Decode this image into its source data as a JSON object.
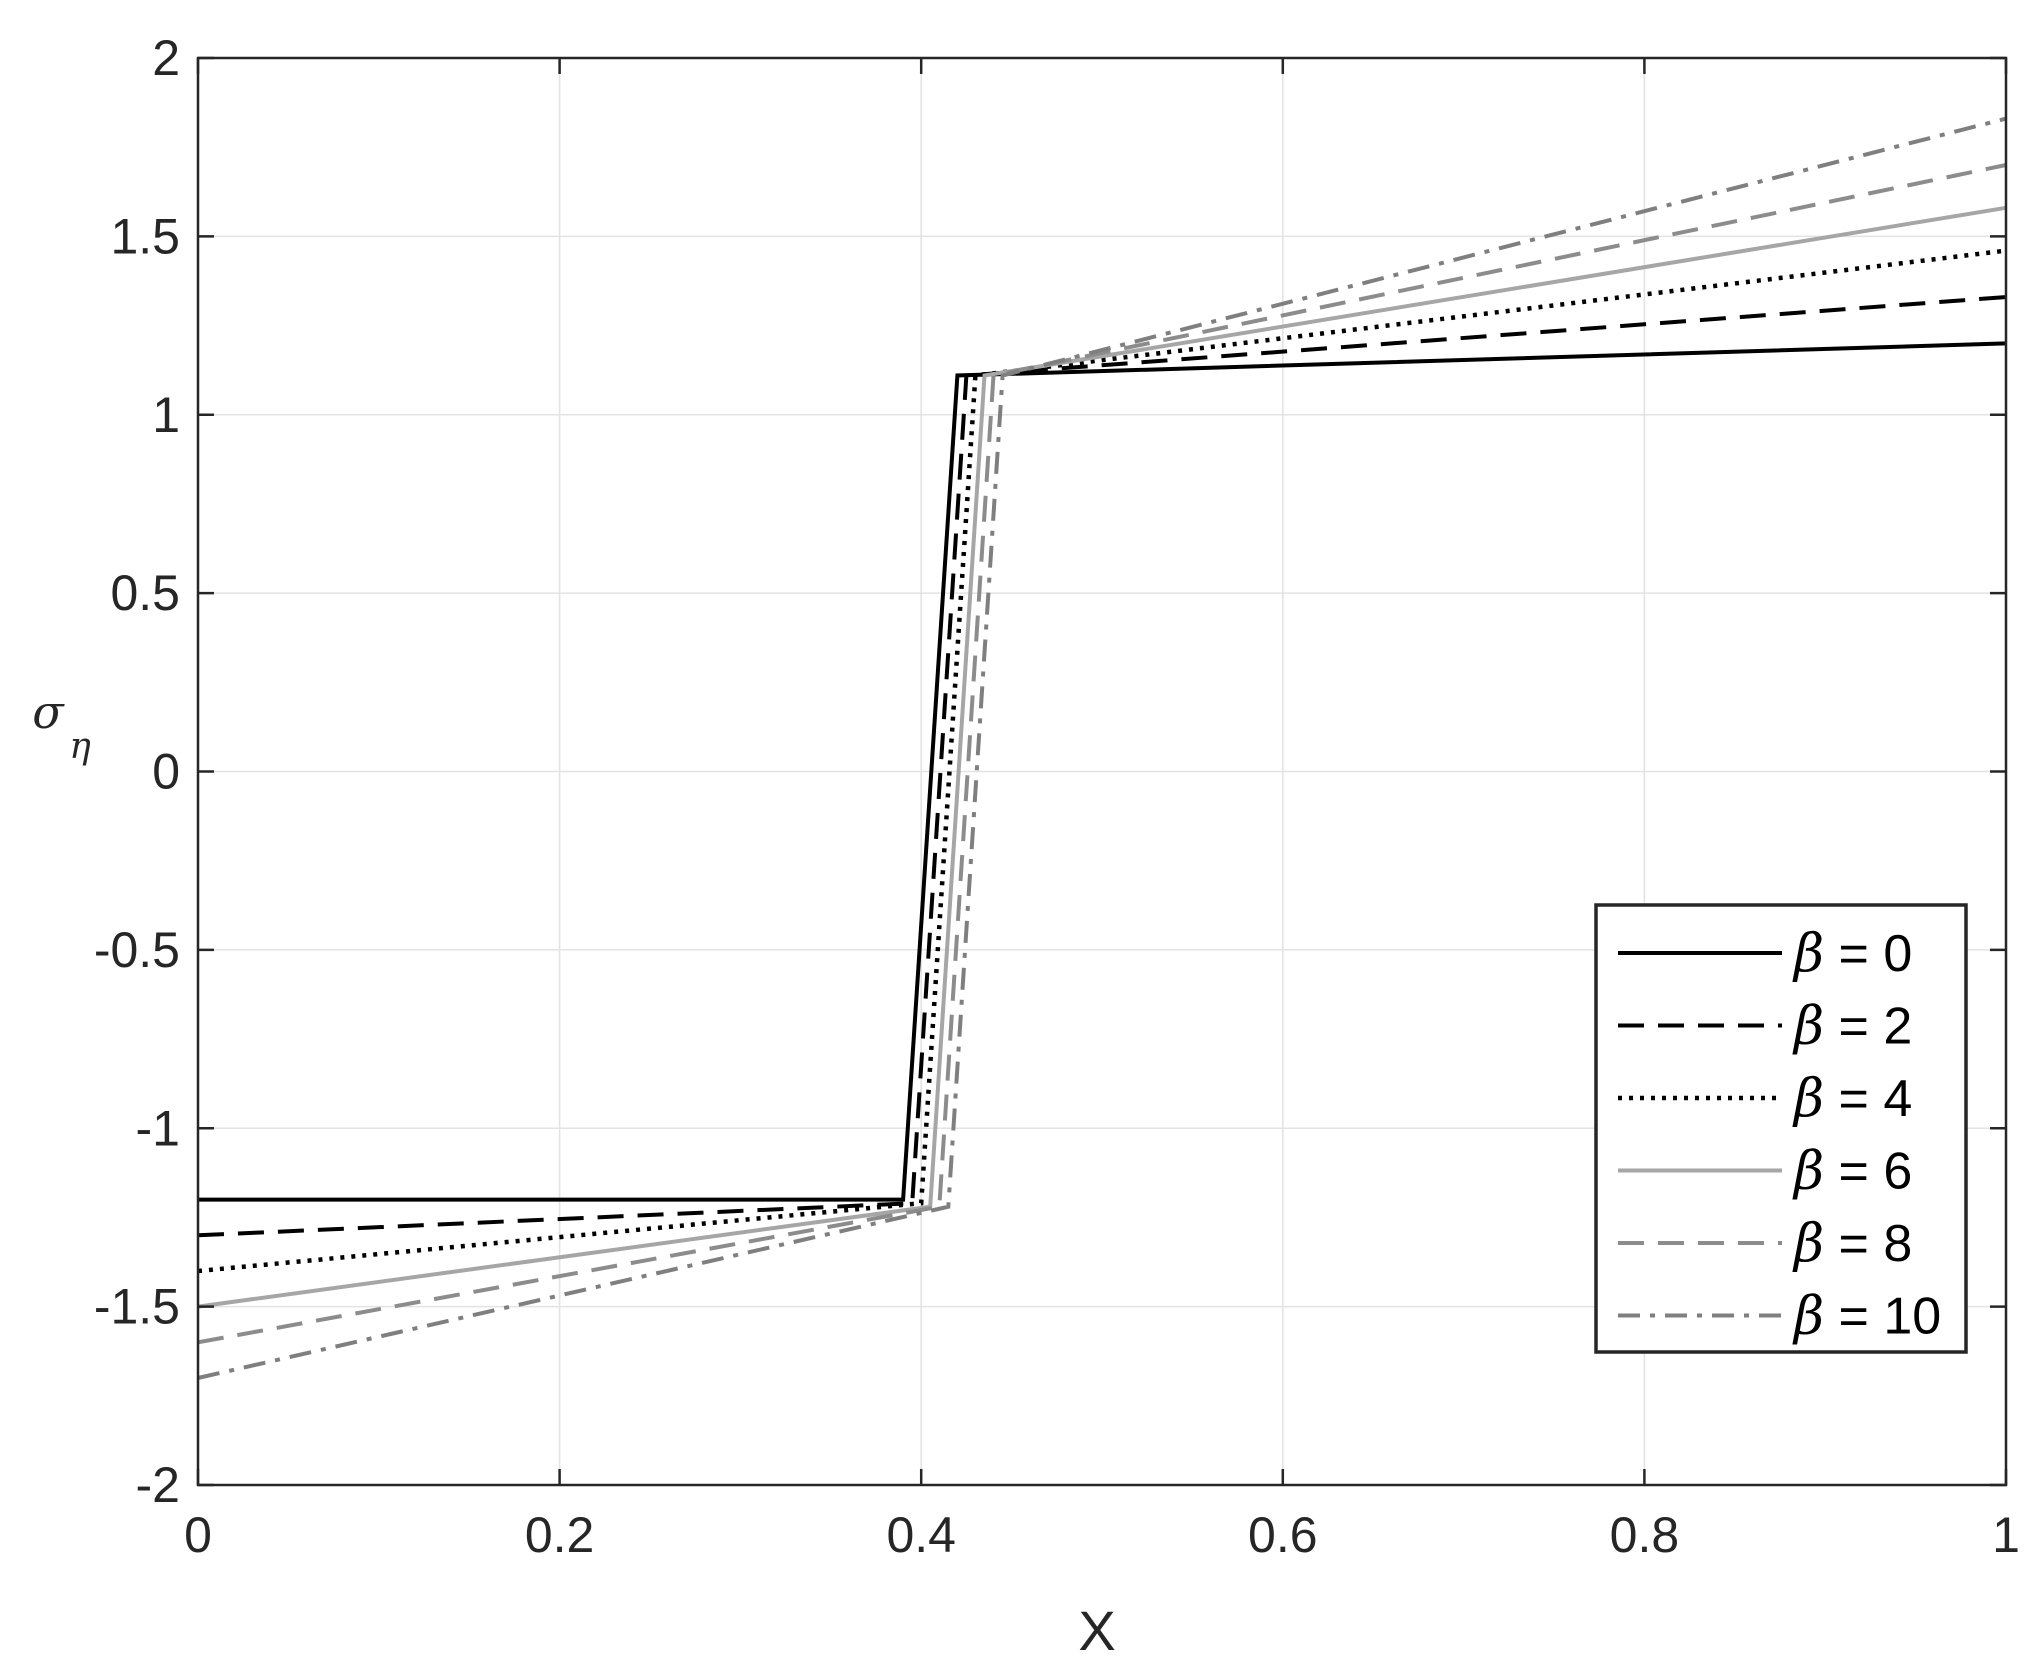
{
  "chart_data": {
    "type": "line",
    "title": "",
    "xlabel": "X",
    "ylabel": {
      "symbol": "σ",
      "subscript": "η"
    },
    "xlim": [
      0,
      1
    ],
    "ylim": [
      -2,
      2
    ],
    "xticks": [
      0,
      0.2,
      0.4,
      0.6,
      0.8,
      1
    ],
    "xtick_labels": [
      "0",
      "0.2",
      "0.4",
      "0.6",
      "0.8",
      "1"
    ],
    "yticks": [
      -2,
      -1.5,
      -1,
      -0.5,
      0,
      0.5,
      1,
      1.5,
      2
    ],
    "ytick_labels": [
      "-2",
      "-1.5",
      "-1",
      "-0.5",
      "0",
      "0.5",
      "1",
      "1.5",
      "2"
    ],
    "grid": true,
    "legend_position": "bottom-right",
    "series": [
      {
        "name": "β = 0",
        "label_symbol": "β",
        "label_value": "= 0",
        "color": "#000000",
        "dash": "solid",
        "x": [
          0,
          0.39,
          0.42,
          1
        ],
        "y": [
          -1.2,
          -1.2,
          1.11,
          1.2
        ]
      },
      {
        "name": "β = 2",
        "label_symbol": "β",
        "label_value": "= 2",
        "color": "#000000",
        "dash": "dashed",
        "x": [
          0,
          0.395,
          0.425,
          1
        ],
        "y": [
          -1.3,
          -1.21,
          1.11,
          1.33
        ]
      },
      {
        "name": "β = 4",
        "label_symbol": "β",
        "label_value": "= 4",
        "color": "#000000",
        "dash": "dotted",
        "x": [
          0,
          0.4,
          0.43,
          1
        ],
        "y": [
          -1.4,
          -1.21,
          1.11,
          1.46
        ]
      },
      {
        "name": "β = 6",
        "label_symbol": "β",
        "label_value": "= 6",
        "color": "#a6a6a6",
        "dash": "solid",
        "x": [
          0,
          0.405,
          0.435,
          1
        ],
        "y": [
          -1.5,
          -1.22,
          1.11,
          1.58
        ]
      },
      {
        "name": "β = 8",
        "label_symbol": "β",
        "label_value": "= 8",
        "color": "#8c8c8c",
        "dash": "dashed",
        "x": [
          0,
          0.41,
          0.44,
          1
        ],
        "y": [
          -1.6,
          -1.22,
          1.11,
          1.7
        ]
      },
      {
        "name": "β = 10",
        "label_symbol": "β",
        "label_value": "= 10",
        "color": "#7f7f7f",
        "dash": "dashdot",
        "x": [
          0,
          0.415,
          0.445,
          1
        ],
        "y": [
          -1.7,
          -1.22,
          1.11,
          1.83
        ]
      }
    ]
  }
}
